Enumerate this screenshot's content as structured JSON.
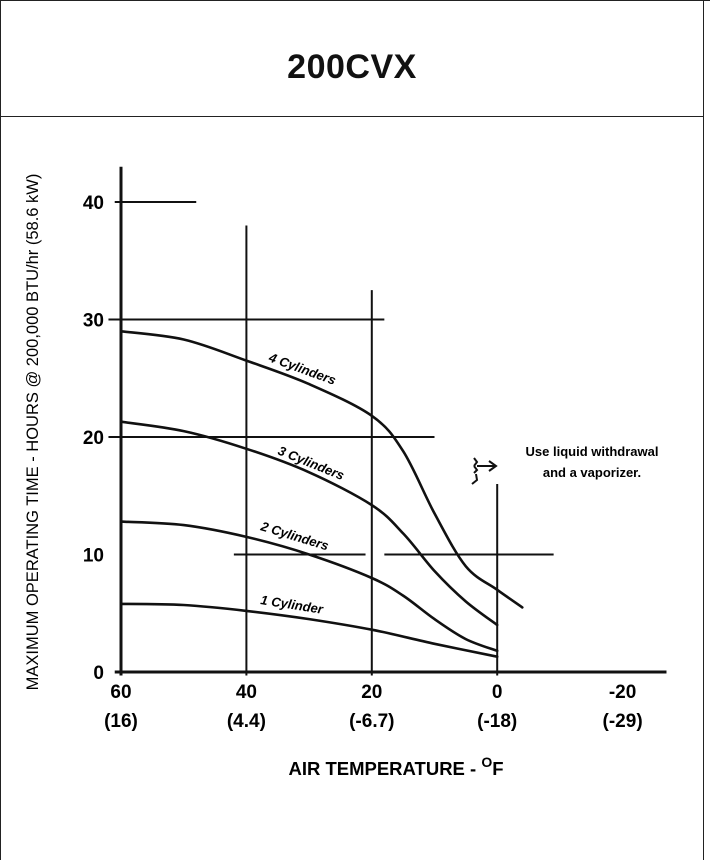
{
  "chart_data": {
    "type": "line",
    "title": "200CVX",
    "ylabel": "MAXIMUM OPERATING TIME - HOURS @ 200,000 BTU/hr (58.6 kW)",
    "xlabel_text": "AIR TEMPERATURE - ",
    "xlabel_degree": "O",
    "xlabel_unit": "F",
    "xlim": [
      60,
      -27
    ],
    "ylim": [
      0,
      42
    ],
    "x_ticks": [
      {
        "value": 60,
        "label": "60",
        "sublabel": "(16)"
      },
      {
        "value": 40,
        "label": "40",
        "sublabel": "(4.4)"
      },
      {
        "value": 20,
        "label": "20",
        "sublabel": "(-6.7)"
      },
      {
        "value": 0,
        "label": "0",
        "sublabel": "(-18)"
      },
      {
        "value": -20,
        "label": "-20",
        "sublabel": "(-29)"
      }
    ],
    "y_ticks": [
      {
        "value": 0,
        "label": "0"
      },
      {
        "value": 10,
        "label": "10"
      },
      {
        "value": 20,
        "label": "20"
      },
      {
        "value": 30,
        "label": "30"
      },
      {
        "value": 40,
        "label": "40"
      }
    ],
    "series": [
      {
        "name": "1 Cylinder",
        "points": [
          [
            60,
            5.8
          ],
          [
            50,
            5.7
          ],
          [
            40,
            5.2
          ],
          [
            30,
            4.5
          ],
          [
            20,
            3.6
          ],
          [
            10,
            2.4
          ],
          [
            0,
            1.3
          ]
        ]
      },
      {
        "name": "2 Cylinders",
        "points": [
          [
            60,
            12.8
          ],
          [
            50,
            12.5
          ],
          [
            40,
            11.5
          ],
          [
            30,
            10.0
          ],
          [
            20,
            8.0
          ],
          [
            15,
            6.5
          ],
          [
            10,
            4.5
          ],
          [
            5,
            2.8
          ],
          [
            0,
            1.8
          ]
        ]
      },
      {
        "name": "3 Cylinders",
        "points": [
          [
            60,
            21.3
          ],
          [
            50,
            20.5
          ],
          [
            40,
            19.0
          ],
          [
            30,
            17.0
          ],
          [
            20,
            14.2
          ],
          [
            15,
            11.8
          ],
          [
            10,
            8.6
          ],
          [
            5,
            6.0
          ],
          [
            0,
            4.0
          ]
        ]
      },
      {
        "name": "4 Cylinders",
        "points": [
          [
            60,
            29.0
          ],
          [
            50,
            28.3
          ],
          [
            40,
            26.5
          ],
          [
            30,
            24.5
          ],
          [
            20,
            21.8
          ],
          [
            15,
            18.8
          ],
          [
            10,
            13.5
          ],
          [
            5,
            9.0
          ],
          [
            0,
            7.0
          ],
          [
            -4,
            5.5
          ]
        ]
      }
    ],
    "guide_lines": {
      "horizontal": [
        {
          "y": 40,
          "x0": 61,
          "x1": 48
        },
        {
          "y": 30,
          "x0": 62,
          "x1": 18
        },
        {
          "y": 20,
          "x0": 62,
          "x1": 10
        },
        {
          "y": 10,
          "x0": 42,
          "x1": 21
        },
        {
          "y": 10,
          "x0": 18,
          "x1": -9
        },
        {
          "y": 0,
          "x0": 61,
          "x1": -27
        }
      ],
      "vertical": [
        {
          "x": 60,
          "y0": -0.3,
          "y1": 43
        },
        {
          "x": 40,
          "y0": -0.3,
          "y1": 38
        },
        {
          "x": 20,
          "y0": -0.3,
          "y1": 32.5
        },
        {
          "x": 0,
          "y0": -0.3,
          "y1": 16
        }
      ]
    },
    "annotation": {
      "line1": "Use liquid withdrawal",
      "line2": "and a vaporizer."
    }
  }
}
